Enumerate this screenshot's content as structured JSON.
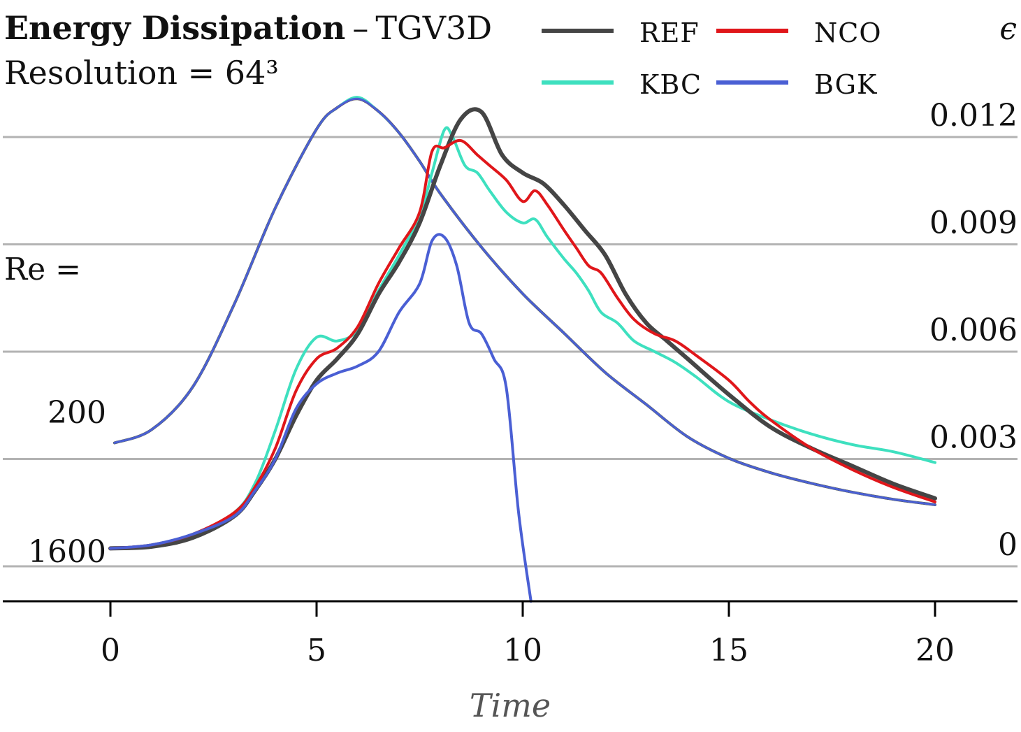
{
  "chart_data": {
    "type": "line",
    "title": "Energy Dissipation",
    "subtitle": "TGV3D",
    "title_separator": "–",
    "resolution_label": "Resolution = 64³",
    "xlabel": "Time",
    "ylabel": "ϵ",
    "re_label": "Re =",
    "xlim": [
      -2.6,
      22
    ],
    "ylim": [
      -0.0037,
      0.0147
    ],
    "x_ticks": [
      0,
      5,
      10,
      15,
      20
    ],
    "x_tick_labels": [
      "0",
      "5",
      "10",
      "15",
      "20"
    ],
    "y_ticks": [
      0,
      0.003,
      0.006,
      0.009,
      0.012
    ],
    "y_tick_labels": [
      "0",
      "0.003",
      "0.006",
      "0.009",
      "0.012"
    ],
    "grid": true,
    "legend": {
      "placement": "top",
      "entries": [
        {
          "label": "REF",
          "color": "#454545"
        },
        {
          "label": "NCO",
          "color": "#e0161a"
        },
        {
          "label": "KBC",
          "color": "#3ee0bf"
        },
        {
          "label": "BGK",
          "color": "#4a5fd4"
        }
      ]
    },
    "groups": [
      {
        "re": "200",
        "offset": 0.00342,
        "series": [
          {
            "name": "REF",
            "color": "#454545",
            "width": 4,
            "x": [
              0.1,
              1.0,
              2.0,
              3.0,
              4.0,
              5.0,
              5.5,
              6.0,
              6.5,
              7.0,
              7.5,
              8.0,
              9.0,
              10.0,
              11.0,
              12.0,
              13.0,
              14.0,
              15.0,
              16.0,
              17.0,
              18.0,
              19.0,
              20.0
            ],
            "y": [
              3e-05,
              0.0004,
              0.0016,
              0.0039,
              0.0066,
              0.0088,
              0.0094,
              0.00965,
              0.0093,
              0.0087,
              0.0079,
              0.007,
              0.0055,
              0.0042,
              0.0031,
              0.002,
              0.0011,
              0.0002,
              -0.0004,
              -0.0008,
              -0.0011,
              -0.00135,
              -0.00155,
              -0.0017
            ]
          },
          {
            "name": "NCO",
            "color": "#e0161a",
            "width": 3,
            "x": [
              0.1,
              1.0,
              2.0,
              3.0,
              4.0,
              5.0,
              5.5,
              6.0,
              6.5,
              7.0,
              7.5,
              8.0,
              9.0,
              10.0,
              11.0,
              12.0,
              13.0,
              14.0,
              15.0,
              16.0,
              17.0,
              18.0,
              19.0,
              20.0
            ],
            "y": [
              3e-05,
              0.0004,
              0.0016,
              0.0039,
              0.0066,
              0.0088,
              0.0094,
              0.00965,
              0.0093,
              0.0087,
              0.0079,
              0.007,
              0.0055,
              0.0042,
              0.0031,
              0.002,
              0.0011,
              0.0002,
              -0.0004,
              -0.0008,
              -0.0011,
              -0.00135,
              -0.00155,
              -0.0017
            ]
          },
          {
            "name": "KBC",
            "color": "#3ee0bf",
            "width": 3,
            "x": [
              0.1,
              1.0,
              2.0,
              3.0,
              4.0,
              5.0,
              5.5,
              6.0,
              6.5,
              7.0,
              7.5,
              8.0,
              9.0,
              10.0,
              11.0,
              12.0,
              13.0,
              14.0,
              15.0,
              16.0,
              17.0,
              18.0,
              19.0,
              20.0
            ],
            "y": [
              3e-05,
              0.0004,
              0.0016,
              0.0039,
              0.0066,
              0.0088,
              0.0094,
              0.0097,
              0.0093,
              0.0087,
              0.0079,
              0.007,
              0.0055,
              0.0042,
              0.0031,
              0.002,
              0.0011,
              0.0002,
              -0.0004,
              -0.0008,
              -0.0011,
              -0.00135,
              -0.00155,
              -0.0017
            ]
          },
          {
            "name": "BGK",
            "color": "#4a5fd4",
            "width": 3,
            "x": [
              0.1,
              1.0,
              2.0,
              3.0,
              4.0,
              5.0,
              5.5,
              6.0,
              6.5,
              7.0,
              7.5,
              8.0,
              9.0,
              10.0,
              11.0,
              12.0,
              13.0,
              14.0,
              15.0,
              16.0,
              17.0,
              18.0,
              19.0,
              20.0
            ],
            "y": [
              3e-05,
              0.0004,
              0.0016,
              0.0039,
              0.0066,
              0.0088,
              0.0094,
              0.00965,
              0.0093,
              0.0087,
              0.0079,
              0.007,
              0.0055,
              0.0042,
              0.0031,
              0.002,
              0.0011,
              0.0002,
              -0.0004,
              -0.0008,
              -0.0011,
              -0.00135,
              -0.00155,
              -0.0017
            ]
          }
        ]
      },
      {
        "re": "1600",
        "offset": 0.0,
        "series": [
          {
            "name": "REF",
            "color": "#454545",
            "width": 6,
            "x": [
              0,
              1,
              2,
              3,
              3.5,
              4,
              4.5,
              5,
              5.5,
              6,
              6.5,
              7,
              7.5,
              8,
              8.5,
              9,
              9.5,
              10,
              10.5,
              11,
              11.5,
              12,
              12.5,
              13,
              13.5,
              14,
              15,
              16,
              17,
              18,
              19,
              20
            ],
            "y": [
              0.0005,
              0.00055,
              0.0008,
              0.0014,
              0.0021,
              0.003,
              0.0042,
              0.0052,
              0.0058,
              0.0065,
              0.0076,
              0.0085,
              0.0096,
              0.0112,
              0.0125,
              0.0127,
              0.0115,
              0.011,
              0.0107,
              0.0101,
              0.0094,
              0.0087,
              0.0076,
              0.0068,
              0.0063,
              0.0058,
              0.0048,
              0.0039,
              0.0033,
              0.0028,
              0.0023,
              0.0019
            ]
          },
          {
            "name": "NCO",
            "color": "#e0161a",
            "width": 4,
            "x": [
              0,
              1,
              2,
              3,
              3.5,
              4,
              4.5,
              5,
              5.5,
              6,
              6.5,
              7,
              7.5,
              7.8,
              8.1,
              8.5,
              8.9,
              9.2,
              9.6,
              10,
              10.3,
              10.6,
              11,
              11.3,
              11.6,
              11.9,
              12.3,
              12.7,
              13.2,
              13.7,
              14.2,
              15,
              15.5,
              16,
              17,
              18,
              19,
              20
            ],
            "y": [
              0.0005,
              0.0006,
              0.0009,
              0.0015,
              0.0022,
              0.0033,
              0.0049,
              0.0058,
              0.0061,
              0.0067,
              0.0079,
              0.0089,
              0.0099,
              0.0116,
              0.0117,
              0.0119,
              0.0115,
              0.0112,
              0.0108,
              0.0102,
              0.0105,
              0.0101,
              0.0094,
              0.0089,
              0.0084,
              0.0082,
              0.0075,
              0.0069,
              0.0065,
              0.0063,
              0.0059,
              0.0052,
              0.0046,
              0.0041,
              0.0033,
              0.0027,
              0.0022,
              0.0018
            ]
          },
          {
            "name": "KBC",
            "color": "#3ee0bf",
            "width": 4,
            "x": [
              0,
              1,
              2,
              3,
              3.5,
              4,
              4.5,
              5,
              5.5,
              6,
              6.5,
              7,
              7.5,
              7.8,
              8.1,
              8.3,
              8.6,
              8.9,
              9.2,
              9.6,
              10,
              10.3,
              10.6,
              11,
              11.3,
              11.6,
              11.9,
              12.3,
              12.7,
              13.2,
              13.7,
              14.2,
              15,
              16,
              17,
              18,
              19,
              20
            ],
            "y": [
              0.0005,
              0.0006,
              0.0009,
              0.0015,
              0.0023,
              0.0038,
              0.0055,
              0.0064,
              0.0063,
              0.0066,
              0.0077,
              0.0087,
              0.0098,
              0.011,
              0.0122,
              0.012,
              0.0112,
              0.011,
              0.0105,
              0.0099,
              0.0096,
              0.0097,
              0.0092,
              0.0086,
              0.0082,
              0.0077,
              0.0071,
              0.0068,
              0.0063,
              0.006,
              0.0057,
              0.0053,
              0.0046,
              0.0041,
              0.0037,
              0.0034,
              0.0032,
              0.0029
            ]
          },
          {
            "name": "BGK",
            "color": "#4a5fd4",
            "width": 4,
            "x": [
              0,
              1,
              2,
              3,
              3.5,
              4,
              4.5,
              5,
              5.5,
              6,
              6.5,
              7,
              7.5,
              7.8,
              8.1,
              8.4,
              8.7,
              9.0,
              9.3,
              9.6,
              9.9,
              10.2
            ],
            "y": [
              0.0005,
              0.0006,
              0.0009,
              0.0014,
              0.0021,
              0.003,
              0.0044,
              0.0051,
              0.0054,
              0.0056,
              0.006,
              0.0071,
              0.0079,
              0.0091,
              0.0092,
              0.0084,
              0.0068,
              0.0065,
              0.0058,
              0.005,
              0.0015,
              -0.001
            ]
          }
        ]
      }
    ]
  }
}
